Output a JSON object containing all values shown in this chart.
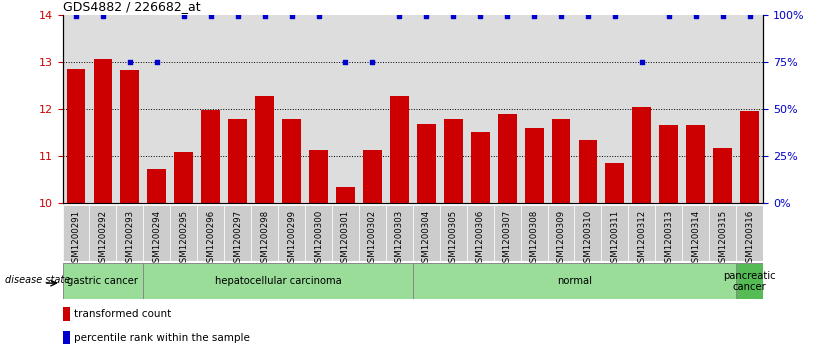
{
  "title": "GDS4882 / 226682_at",
  "categories": [
    "GSM1200291",
    "GSM1200292",
    "GSM1200293",
    "GSM1200294",
    "GSM1200295",
    "GSM1200296",
    "GSM1200297",
    "GSM1200298",
    "GSM1200299",
    "GSM1200300",
    "GSM1200301",
    "GSM1200302",
    "GSM1200303",
    "GSM1200304",
    "GSM1200305",
    "GSM1200306",
    "GSM1200307",
    "GSM1200308",
    "GSM1200309",
    "GSM1200310",
    "GSM1200311",
    "GSM1200312",
    "GSM1200313",
    "GSM1200314",
    "GSM1200315",
    "GSM1200316"
  ],
  "bar_values": [
    12.85,
    13.05,
    12.82,
    10.72,
    11.08,
    11.97,
    11.78,
    12.27,
    11.78,
    11.12,
    10.35,
    11.12,
    12.27,
    11.68,
    11.78,
    11.52,
    11.9,
    11.6,
    11.78,
    11.35,
    10.85,
    12.03,
    11.65,
    11.65,
    11.18,
    11.95
  ],
  "percentile_values": [
    99,
    99,
    75,
    75,
    99,
    99,
    99,
    99,
    99,
    99,
    75,
    75,
    99,
    99,
    99,
    99,
    99,
    99,
    99,
    99,
    99,
    75,
    99,
    99,
    99,
    99
  ],
  "groups": [
    {
      "label": "gastric cancer",
      "start": 0,
      "end": 3
    },
    {
      "label": "hepatocellular carcinoma",
      "start": 3,
      "end": 13
    },
    {
      "label": "normal",
      "start": 13,
      "end": 25
    },
    {
      "label": "pancreatic\ncancer",
      "start": 25,
      "end": 26
    }
  ],
  "ylim_left": [
    10,
    14
  ],
  "ylim_right": [
    0,
    100
  ],
  "bar_color": "#cc0000",
  "percentile_color": "#0000cc",
  "yticks_left": [
    10,
    11,
    12,
    13,
    14
  ],
  "yticks_right": [
    0,
    25,
    50,
    75,
    100
  ],
  "group_color": "#99dd99",
  "group_dark_color": "#55bb55",
  "xtick_bg": "#cccccc",
  "plot_bg": "#dddddd",
  "background_color": "#ffffff"
}
